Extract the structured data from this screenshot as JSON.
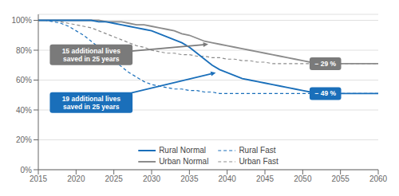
{
  "chart_data": {
    "type": "line",
    "x": [
      2015,
      2016,
      2017,
      2018,
      2019,
      2020,
      2021,
      2022,
      2023,
      2024,
      2025,
      2026,
      2027,
      2028,
      2029,
      2030,
      2031,
      2032,
      2033,
      2034,
      2035,
      2036,
      2037,
      2038,
      2039,
      2040,
      2041,
      2042,
      2043,
      2044,
      2045,
      2046,
      2047,
      2048,
      2049,
      2050,
      2051,
      2052,
      2053,
      2054,
      2055,
      2056,
      2057,
      2058,
      2059,
      2060
    ],
    "series": [
      {
        "name": "Rural Normal",
        "color": "#1a6fba",
        "line_style": "solid",
        "values": [
          100,
          100,
          100,
          100,
          100,
          100,
          100,
          100,
          99,
          99,
          98,
          97,
          96,
          95,
          94,
          93,
          91,
          89,
          87,
          85,
          82,
          78,
          74,
          70,
          67,
          65,
          63,
          61,
          60,
          59,
          58,
          57,
          56,
          55,
          54,
          53,
          52,
          51,
          51,
          51,
          51,
          51,
          51,
          51,
          51,
          51
        ]
      },
      {
        "name": "Rural Fast",
        "color": "#1a6fba",
        "line_style": "dashed",
        "values": [
          100,
          100,
          99,
          98,
          96,
          93,
          90,
          86,
          82,
          77,
          73,
          69,
          65,
          62,
          59,
          57,
          56,
          55,
          54,
          54,
          53,
          53,
          52,
          52,
          51,
          51,
          51,
          51,
          51,
          51,
          51,
          51,
          51,
          51,
          51,
          51,
          51,
          51,
          51,
          51,
          51,
          51,
          51,
          51,
          51,
          51
        ]
      },
      {
        "name": "Urban Normal",
        "color": "#8c8c8c",
        "line_style": "solid",
        "values": [
          100,
          100,
          100,
          100,
          100,
          100,
          100,
          100,
          100,
          99,
          99,
          99,
          98,
          97,
          97,
          96,
          95,
          94,
          93,
          91,
          90,
          88,
          86,
          85,
          84,
          83,
          82,
          81,
          80,
          79,
          78,
          77,
          76,
          75,
          74,
          73,
          72,
          72,
          71,
          71,
          71,
          71,
          71,
          71,
          71,
          71
        ]
      },
      {
        "name": "Urban Fast",
        "color": "#8c8c8c",
        "line_style": "dashed",
        "values": [
          100,
          100,
          100,
          99,
          98,
          97,
          96,
          95,
          93,
          91,
          89,
          87,
          85,
          83,
          82,
          80,
          79,
          78,
          78,
          77,
          77,
          76,
          76,
          75,
          75,
          74,
          74,
          73,
          73,
          72,
          72,
          71,
          71,
          71,
          71,
          71,
          71,
          71,
          71,
          71,
          71,
          71,
          71,
          71,
          71,
          71
        ]
      }
    ],
    "xlim": [
      2015,
      2060
    ],
    "ylim": [
      0,
      104
    ],
    "xticks": [
      2015,
      2020,
      2025,
      2030,
      2035,
      2040,
      2045,
      2050,
      2055,
      2060
    ],
    "yticks": [
      {
        "value": 0,
        "label": "0%"
      },
      {
        "value": 20,
        "label": "20%"
      },
      {
        "value": 40,
        "label": "40%"
      },
      {
        "value": 60,
        "label": "60%"
      },
      {
        "value": 80,
        "label": "80%"
      },
      {
        "value": 100,
        "label": "100%"
      }
    ],
    "grid": true,
    "legend": "lower center",
    "annotations": [
      {
        "text": "15 additional lives\nsaved in 25 years",
        "x": 2037.5,
        "y": 84,
        "text_x": 2022,
        "text_y": 77,
        "color": "#7a7a7a"
      },
      {
        "text": "19 additional lives\nsaved in 25 years",
        "x": 2038.5,
        "y": 65,
        "text_x": 2022,
        "text_y": 45,
        "color": "#1a6fba"
      },
      {
        "text": "− 49 %",
        "x": 2053,
        "y": 51,
        "color": "#1a6fba"
      },
      {
        "text": "− 29 %",
        "x": 2053,
        "y": 71,
        "color": "#7a7a7a"
      }
    ]
  }
}
